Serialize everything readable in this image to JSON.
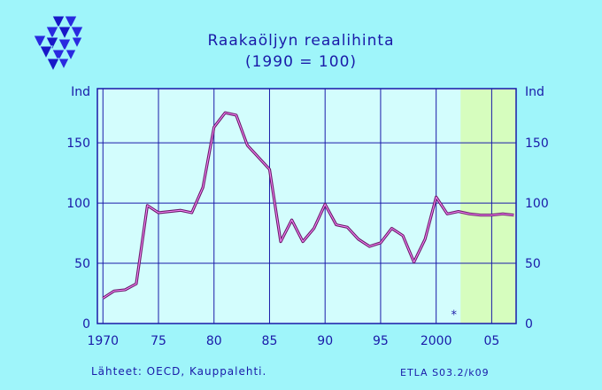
{
  "title": "Raakaöljyn  reaalihinta",
  "subtitle": "(1990 = 100)",
  "footer": {
    "sources": "Lähteet:   OECD, Kauppalehti.",
    "code": "ETLA  S03.2/k09"
  },
  "colors": {
    "background": "#9ff5fa",
    "plot_area": "#d3fdfd",
    "forecast_area": "#d6fdbe",
    "grid": "#1a1aa8",
    "text": "#1a1aa8",
    "line": "#6a1a6a",
    "line_highlight": "#ff8cff"
  },
  "logo": {
    "icon": "etla-triangles-logo"
  },
  "chart_data": {
    "type": "line",
    "title": "Raakaöljyn  reaalihinta",
    "subtitle": "(1990 = 100)",
    "ylabel_left": "Ind",
    "ylabel_right": "Ind",
    "xlim": [
      1969.5,
      2007.2
    ],
    "ylim": [
      0,
      195
    ],
    "x_ticks": [
      1970,
      1975,
      1980,
      1985,
      1990,
      1995,
      2000,
      2005
    ],
    "x_tick_labels": [
      "1970",
      "75",
      "80",
      "85",
      "90",
      "95",
      "2000",
      "05"
    ],
    "y_ticks": [
      0,
      50,
      100,
      150
    ],
    "y_tick_labels": [
      "0",
      "50",
      "100",
      "150"
    ],
    "grid": true,
    "forecast_shading": [
      2002.2,
      2007.2
    ],
    "forecast_marker": {
      "x": 2001.6,
      "y": 10,
      "label": "*"
    },
    "x": [
      1970,
      1971,
      1972,
      1973,
      1974,
      1975,
      1976,
      1977,
      1978,
      1979,
      1980,
      1981,
      1982,
      1983,
      1984,
      1985,
      1986,
      1987,
      1988,
      1989,
      1990,
      1991,
      1992,
      1993,
      1994,
      1995,
      1996,
      1997,
      1998,
      1999,
      2000,
      2001,
      2002,
      2003,
      2004,
      2005,
      2006,
      2007
    ],
    "values": [
      21,
      27,
      28,
      33,
      98,
      92,
      93,
      94,
      92,
      113,
      163,
      175,
      173,
      148,
      138,
      128,
      68,
      86,
      68,
      79,
      99,
      82,
      80,
      70,
      64,
      67,
      79,
      73,
      51,
      70,
      105,
      91,
      93,
      91,
      90,
      90,
      91,
      90
    ]
  }
}
